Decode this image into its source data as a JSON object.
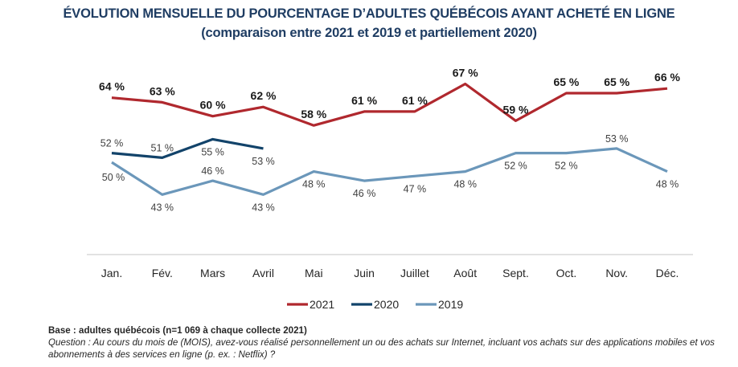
{
  "chart_data": {
    "type": "line",
    "title": "ÉVOLUTION MENSUELLE DU POURCENTAGE D’ADULTES QUÉBÉCOIS AYANT ACHETÉ EN LIGNE",
    "subtitle": "(comparaison entre 2021 et 2019 et partiellement 2020)",
    "xlabel": "",
    "ylabel": "",
    "ylim": [
      30,
      73
    ],
    "grid": false,
    "legend_position": "bottom-center",
    "categories": [
      "Jan.",
      "Fév.",
      "Mars",
      "Avril",
      "Mai",
      "Juin",
      "Juillet",
      "Août",
      "Sept.",
      "Oct.",
      "Nov.",
      "Déc."
    ],
    "series": [
      {
        "name": "2021",
        "color": "#b0282e",
        "label_style": "bold",
        "values": [
          64,
          63,
          60,
          62,
          58,
          61,
          61,
          67,
          59,
          65,
          65,
          66
        ],
        "labels": [
          "64 %",
          "63 %",
          "60 %",
          "62 %",
          "58 %",
          "61 %",
          "61 %",
          "67 %",
          "59 %",
          "65 %",
          "65 %",
          "66 %"
        ]
      },
      {
        "name": "2020",
        "color": "#12436a",
        "label_style": "regular",
        "values": [
          52,
          51,
          55,
          53
        ],
        "labels": [
          "52 %",
          "51 %",
          "55 %",
          "53 %"
        ]
      },
      {
        "name": "2019",
        "color": "#6b97ba",
        "label_style": "regular",
        "values": [
          50,
          43,
          46,
          43,
          48,
          46,
          47,
          48,
          52,
          52,
          53,
          48
        ],
        "labels": [
          "50 %",
          "43 %",
          "46 %",
          "43 %",
          "48 %",
          "46 %",
          "47 %",
          "48 %",
          "52 %",
          "52 %",
          "53 %",
          "48 %"
        ]
      }
    ]
  },
  "footer": {
    "base": "Base : adultes québécois (n=1 069 à chaque collecte 2021)",
    "question": "Question : Au cours du mois de (MOIS), avez-vous réalisé personnellement un ou des achats sur Internet, incluant vos achats sur des applications mobiles et vos abonnements à des services en ligne (p. ex. : Netflix) ?"
  }
}
